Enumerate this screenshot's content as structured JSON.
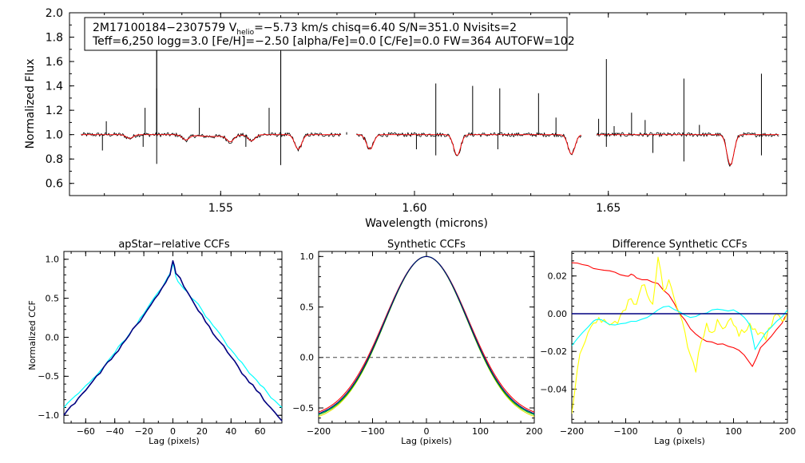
{
  "chart_data": [
    {
      "id": "spectrum",
      "type": "line",
      "xlabel": "Wavelength (microns)",
      "ylabel": "Normalized Flux",
      "xlim": [
        1.511,
        1.696
      ],
      "ylim": [
        0.5,
        2.0
      ],
      "xticks": [
        1.55,
        1.6,
        1.65
      ],
      "xtick_labels": [
        "1.55",
        "1.60",
        "1.65"
      ],
      "yticks": [
        0.6,
        0.8,
        1.0,
        1.2,
        1.4,
        1.6,
        1.8,
        2.0
      ],
      "ytick_labels": [
        "0.6",
        "0.8",
        "1.0",
        "1.2",
        "1.4",
        "1.6",
        "1.8",
        "2.0"
      ],
      "annotation": {
        "line1_prefix": "2M17100184−2307579  V",
        "line1_sub": "helio",
        "line1_suffix": "=−5.73 km/s  chisq=6.40  S/N=351.0  Nvisits=2",
        "line2": "Teff=6,250 logg=3.0 [Fe/H]=−2.50 [alpha/Fe]=0.0 [C/Fe]=0.0 FW=364 AUTOFW=102"
      },
      "chips": [
        [
          1.514,
          1.581
        ],
        [
          1.585,
          1.643
        ],
        [
          1.647,
          1.694
        ]
      ],
      "series": [
        {
          "name": "observed",
          "color": "#000000"
        },
        {
          "name": "model",
          "color": "#ff0000"
        }
      ],
      "continuum": 1.0,
      "absorption_lines": [
        {
          "x": 1.5265,
          "depth": 0.03
        },
        {
          "x": 1.541,
          "depth": 0.04
        },
        {
          "x": 1.5525,
          "depth": 0.05
        },
        {
          "x": 1.558,
          "depth": 0.05
        },
        {
          "x": 1.57,
          "depth": 0.12
        },
        {
          "x": 1.5885,
          "depth": 0.12
        },
        {
          "x": 1.611,
          "depth": 0.17
        },
        {
          "x": 1.6405,
          "depth": 0.16
        },
        {
          "x": 1.6815,
          "depth": 0.25
        }
      ],
      "spikes": [
        {
          "x": 1.5205,
          "top": 1.11
        },
        {
          "x": 1.5305,
          "top": 1.22
        },
        {
          "x": 1.5335,
          "top": 1.38
        },
        {
          "x": 1.5335,
          "top": 1.72
        },
        {
          "x": 1.5335,
          "top": 1.92
        },
        {
          "x": 1.5445,
          "top": 1.22
        },
        {
          "x": 1.5625,
          "top": 1.22
        },
        {
          "x": 1.5655,
          "top": 1.68
        },
        {
          "x": 1.5655,
          "top": 1.98
        },
        {
          "x": 1.5825,
          "top": 1.02
        },
        {
          "x": 1.6055,
          "top": 1.42
        },
        {
          "x": 1.615,
          "top": 1.4
        },
        {
          "x": 1.622,
          "top": 1.38
        },
        {
          "x": 1.632,
          "top": 1.34
        },
        {
          "x": 1.6365,
          "top": 1.14
        },
        {
          "x": 1.6475,
          "top": 1.13
        },
        {
          "x": 1.6495,
          "top": 1.62
        },
        {
          "x": 1.6515,
          "top": 1.07
        },
        {
          "x": 1.656,
          "top": 1.18
        },
        {
          "x": 1.6595,
          "top": 1.12
        },
        {
          "x": 1.6695,
          "top": 1.46
        },
        {
          "x": 1.6735,
          "top": 1.08
        },
        {
          "x": 1.6895,
          "top": 1.5
        }
      ],
      "dips": [
        {
          "x": 1.5195,
          "bottom": 0.87
        },
        {
          "x": 1.53,
          "bottom": 0.9
        },
        {
          "x": 1.5335,
          "bottom": 0.76
        },
        {
          "x": 1.5565,
          "bottom": 0.9
        },
        {
          "x": 1.5655,
          "bottom": 0.75
        },
        {
          "x": 1.6005,
          "bottom": 0.88
        },
        {
          "x": 1.6055,
          "bottom": 0.83
        },
        {
          "x": 1.6215,
          "bottom": 0.88
        },
        {
          "x": 1.6495,
          "bottom": 0.9
        },
        {
          "x": 1.6615,
          "bottom": 0.85
        },
        {
          "x": 1.6695,
          "bottom": 0.78
        },
        {
          "x": 1.6895,
          "bottom": 0.83
        }
      ]
    },
    {
      "id": "apstar-ccf",
      "type": "line",
      "title": "apStar−relative CCFs",
      "xlabel": "Lag (pixels)",
      "ylabel": "Normalized CCF",
      "xlim": [
        -75,
        75
      ],
      "ylim": [
        -1.1,
        1.1
      ],
      "xticks": [
        -60,
        -40,
        -20,
        0,
        20,
        40,
        60
      ],
      "xtick_labels": [
        "−60",
        "−40",
        "−20",
        "0",
        "20",
        "40",
        "60"
      ],
      "yticks": [
        -1.0,
        -0.5,
        0.0,
        0.5,
        1.0
      ],
      "ytick_labels": [
        "−1.0",
        "−0.5",
        "0.0",
        "0.5",
        "1.0"
      ],
      "series": [
        {
          "name": "visit 1",
          "color": "#000080",
          "x": [
            -75,
            -70,
            -65,
            -60,
            -55,
            -50,
            -45,
            -40,
            -35,
            -30,
            -25,
            -20,
            -15,
            -10,
            -5,
            -2,
            0,
            2,
            5,
            10,
            15,
            20,
            25,
            30,
            35,
            40,
            45,
            50,
            55,
            60,
            65,
            70,
            75
          ],
          "y": [
            -1.0,
            -0.88,
            -0.78,
            -0.68,
            -0.56,
            -0.46,
            -0.32,
            -0.22,
            -0.09,
            0.03,
            0.16,
            0.28,
            0.42,
            0.55,
            0.7,
            0.8,
            0.98,
            0.82,
            0.76,
            0.58,
            0.42,
            0.29,
            0.14,
            -0.01,
            -0.11,
            -0.25,
            -0.38,
            -0.51,
            -0.61,
            -0.72,
            -0.86,
            -0.96,
            -1.07
          ]
        },
        {
          "name": "visit 2",
          "color": "#00ffff",
          "x": [
            -75,
            -70,
            -65,
            -60,
            -55,
            -50,
            -45,
            -40,
            -35,
            -30,
            -25,
            -20,
            -15,
            -10,
            -5,
            -2,
            0,
            2,
            5,
            10,
            15,
            20,
            25,
            30,
            35,
            40,
            45,
            50,
            55,
            60,
            65,
            70,
            75
          ],
          "y": [
            -0.9,
            -0.8,
            -0.72,
            -0.62,
            -0.53,
            -0.43,
            -0.31,
            -0.2,
            -0.07,
            0.04,
            0.16,
            0.3,
            0.45,
            0.58,
            0.72,
            0.82,
            0.95,
            0.78,
            0.68,
            0.58,
            0.47,
            0.35,
            0.22,
            0.1,
            -0.03,
            -0.16,
            -0.28,
            -0.39,
            -0.5,
            -0.61,
            -0.71,
            -0.81,
            -0.9
          ]
        }
      ]
    },
    {
      "id": "synthetic-ccf",
      "type": "line",
      "title": "Synthetic CCFs",
      "xlabel": "Lag (pixels)",
      "ylabel": "",
      "xlim": [
        -200,
        200
      ],
      "ylim": [
        -0.65,
        1.05
      ],
      "xticks": [
        -200,
        -100,
        0,
        100,
        200
      ],
      "xtick_labels": [
        "−200",
        "−100",
        "0",
        "100",
        "200"
      ],
      "yticks": [
        -0.5,
        0.0,
        0.5,
        1.0
      ],
      "ytick_labels": [
        "−0.5",
        "0.0",
        "0.5",
        "1.0"
      ],
      "reference_line": {
        "y": 0.0,
        "style": "dashed"
      },
      "series": [
        {
          "name": "red",
          "color": "#ff0000",
          "ymin": -0.6,
          "sigma": 78
        },
        {
          "name": "yellow",
          "color": "#e0e000",
          "ymin": -0.64,
          "sigma": 77
        },
        {
          "name": "cyan",
          "color": "#00dddd",
          "ymin": -0.62,
          "sigma": 77.5
        },
        {
          "name": "green",
          "color": "#00aa00",
          "ymin": -0.62,
          "sigma": 76.5
        },
        {
          "name": "navy",
          "color": "#000080",
          "ymin": -0.61,
          "sigma": 77
        }
      ]
    },
    {
      "id": "difference-ccf",
      "type": "line",
      "title": "Difference Synthetic CCFs",
      "xlabel": "Lag (pixels)",
      "ylabel": "",
      "xlim": [
        -200,
        200
      ],
      "ylim": [
        -0.058,
        0.033
      ],
      "xticks": [
        -200,
        -100,
        0,
        100,
        200
      ],
      "xtick_labels": [
        "−200",
        "−100",
        "0",
        "100",
        "200"
      ],
      "yticks": [
        -0.04,
        -0.02,
        0.0,
        0.02
      ],
      "ytick_labels": [
        "−0.04",
        "−0.02",
        "0.00",
        "0.02"
      ],
      "reference_line": {
        "y": 0.0,
        "style": "dashed"
      },
      "series": [
        {
          "name": "red",
          "color": "#ff0000",
          "x": [
            -200,
            -180,
            -160,
            -140,
            -120,
            -100,
            -90,
            -80,
            -60,
            -40,
            -20,
            0,
            20,
            40,
            60,
            80,
            100,
            120,
            135,
            150,
            170,
            190,
            200
          ],
          "y": [
            0.027,
            0.026,
            0.024,
            0.023,
            0.022,
            0.02,
            0.021,
            0.019,
            0.018,
            0.016,
            0.01,
            0.0,
            -0.008,
            -0.013,
            -0.015,
            -0.016,
            -0.018,
            -0.022,
            -0.028,
            -0.018,
            -0.012,
            -0.005,
            0.0
          ]
        },
        {
          "name": "yellow",
          "color": "#ffff00",
          "x": [
            -200,
            -190,
            -180,
            -170,
            -160,
            -150,
            -140,
            -130,
            -120,
            -110,
            -100,
            -90,
            -80,
            -70,
            -60,
            -50,
            -40,
            -30,
            -20,
            -10,
            0,
            10,
            20,
            30,
            40,
            50,
            60,
            70,
            80,
            90,
            100,
            110,
            120,
            130,
            140,
            150,
            160,
            170,
            180,
            190,
            200
          ],
          "y": [
            -0.053,
            -0.03,
            -0.018,
            -0.01,
            -0.005,
            -0.002,
            -0.003,
            -0.006,
            -0.004,
            -0.001,
            0.002,
            0.008,
            0.005,
            0.015,
            0.01,
            0.005,
            0.03,
            0.012,
            0.018,
            0.008,
            0.0,
            -0.01,
            -0.022,
            -0.031,
            -0.015,
            -0.005,
            -0.01,
            -0.003,
            -0.008,
            -0.004,
            -0.006,
            -0.012,
            -0.01,
            -0.005,
            -0.008,
            -0.01,
            -0.014,
            -0.007,
            0.0,
            -0.004,
            0.001
          ]
        },
        {
          "name": "cyan",
          "color": "#00ffff",
          "x": [
            -200,
            -180,
            -160,
            -150,
            -140,
            -120,
            -100,
            -80,
            -60,
            -40,
            -20,
            0,
            20,
            40,
            60,
            80,
            100,
            120,
            130,
            140,
            160,
            180,
            200
          ],
          "y": [
            -0.017,
            -0.01,
            -0.004,
            -0.003,
            -0.004,
            -0.006,
            -0.005,
            -0.004,
            -0.002,
            0.002,
            0.004,
            0.001,
            -0.002,
            0.0,
            0.002,
            0.002,
            0.002,
            -0.002,
            -0.006,
            -0.019,
            -0.01,
            -0.004,
            0.002
          ]
        },
        {
          "name": "navy",
          "color": "#000080",
          "x": [
            -200,
            200
          ],
          "y": [
            0.0,
            0.0
          ]
        }
      ]
    }
  ]
}
